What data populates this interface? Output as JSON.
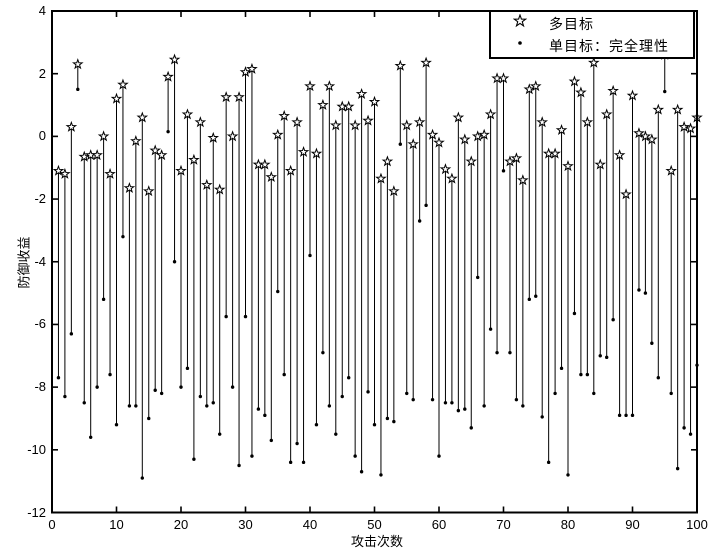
{
  "axes": {
    "xlabel": "攻击次数",
    "ylabel": "防御收益",
    "x_ticks": [
      0,
      10,
      20,
      30,
      40,
      50,
      60,
      70,
      80,
      90,
      100
    ],
    "y_ticks": [
      4,
      2,
      0,
      -2,
      -4,
      -6,
      -8,
      -10,
      -12
    ],
    "xlim": [
      0,
      100
    ],
    "ylim": [
      -12,
      4
    ]
  },
  "legend": {
    "items": [
      {
        "marker": "star-icon",
        "label": "多目标"
      },
      {
        "marker": "dot-icon",
        "label": "单目标：完全理性"
      }
    ],
    "position": "top-right"
  },
  "colors": {
    "foreground": "#000000",
    "background": "#ffffff"
  },
  "chart_data": {
    "type": "stem",
    "title": "",
    "xlabel": "攻击次数",
    "ylabel": "防御收益",
    "xlim": [
      0,
      100
    ],
    "ylim": [
      -12,
      4
    ],
    "grid": false,
    "x": [
      1,
      2,
      3,
      4,
      5,
      6,
      7,
      8,
      9,
      10,
      11,
      12,
      13,
      14,
      15,
      16,
      17,
      18,
      19,
      20,
      21,
      22,
      23,
      24,
      25,
      26,
      27,
      28,
      29,
      30,
      31,
      32,
      33,
      34,
      35,
      36,
      37,
      38,
      39,
      40,
      41,
      42,
      43,
      44,
      45,
      46,
      47,
      48,
      49,
      50,
      51,
      52,
      53,
      54,
      55,
      56,
      57,
      58,
      59,
      60,
      61,
      62,
      63,
      64,
      65,
      66,
      67,
      68,
      69,
      70,
      71,
      72,
      73,
      74,
      75,
      76,
      77,
      78,
      79,
      80,
      81,
      82,
      83,
      84,
      85,
      86,
      87,
      88,
      89,
      90,
      91,
      92,
      93,
      94,
      95,
      96,
      97,
      98,
      99,
      100
    ],
    "series": [
      {
        "name": "多目标",
        "marker": "star",
        "values": [
          -1.1,
          -1.2,
          0.3,
          2.3,
          -0.65,
          -0.6,
          -0.6,
          0.0,
          -1.2,
          1.2,
          1.65,
          -1.65,
          -0.15,
          0.6,
          -1.75,
          -0.45,
          -0.6,
          1.9,
          2.45,
          -1.1,
          0.7,
          -0.75,
          0.45,
          -1.55,
          -0.05,
          -1.7,
          1.25,
          0.0,
          1.25,
          2.05,
          2.15,
          -0.9,
          -0.9,
          -1.3,
          0.05,
          0.65,
          -1.1,
          0.45,
          -0.5,
          1.6,
          -0.55,
          1.0,
          1.6,
          0.35,
          0.95,
          0.95,
          0.35,
          1.35,
          0.5,
          1.1,
          -1.35,
          -0.8,
          -1.75,
          2.25,
          0.35,
          -0.25,
          0.45,
          2.35,
          0.05,
          -0.2,
          -1.05,
          -1.35,
          0.6,
          -0.1,
          -0.8,
          0.0,
          0.05,
          0.7,
          1.85,
          1.85,
          -0.8,
          -0.7,
          -1.4,
          1.5,
          1.6,
          0.45,
          -0.55,
          -0.55,
          0.2,
          -0.95,
          1.75,
          1.4,
          0.45,
          2.35,
          -0.9,
          0.7,
          1.45,
          -0.6,
          -1.85,
          1.3,
          0.1,
          0.0,
          -0.1,
          0.85,
          2.6,
          -1.1,
          0.85,
          0.3,
          0.25,
          0.6
        ]
      },
      {
        "name": "单目标：完全理性",
        "marker": "dot",
        "values": [
          -7.7,
          -8.3,
          -6.3,
          1.5,
          -8.5,
          -9.6,
          -8.0,
          -5.2,
          -7.6,
          -9.2,
          -3.2,
          -8.6,
          -8.6,
          -10.9,
          -9.0,
          -8.1,
          -8.2,
          0.15,
          -4.0,
          -8.0,
          -7.4,
          -10.3,
          -8.3,
          -8.6,
          -8.5,
          -9.5,
          -5.75,
          -8.0,
          -10.5,
          -5.75,
          -10.2,
          -8.7,
          -8.9,
          -9.7,
          -4.95,
          -7.6,
          -10.4,
          -9.8,
          -10.4,
          -3.8,
          -9.2,
          -6.9,
          -8.6,
          -9.5,
          -8.3,
          -7.7,
          -10.2,
          -10.7,
          -8.15,
          -9.2,
          -10.8,
          -9.0,
          -9.1,
          -0.25,
          -8.2,
          -8.4,
          -2.7,
          -2.2,
          -8.4,
          -10.2,
          -8.5,
          -8.5,
          -8.75,
          -8.7,
          -9.3,
          -4.5,
          -8.6,
          -6.15,
          -6.9,
          -1.1,
          -6.9,
          -8.4,
          -8.6,
          -5.2,
          -5.1,
          -8.95,
          -10.4,
          -8.2,
          -7.4,
          -10.8,
          -5.65,
          -7.6,
          -7.6,
          -8.2,
          -7.0,
          -7.05,
          -5.85,
          -8.9,
          -8.9,
          -8.9,
          -4.9,
          -5.0,
          -6.6,
          -7.7,
          1.43,
          -8.2,
          -10.6,
          -9.3,
          -9.5,
          -7.3
        ]
      }
    ]
  }
}
